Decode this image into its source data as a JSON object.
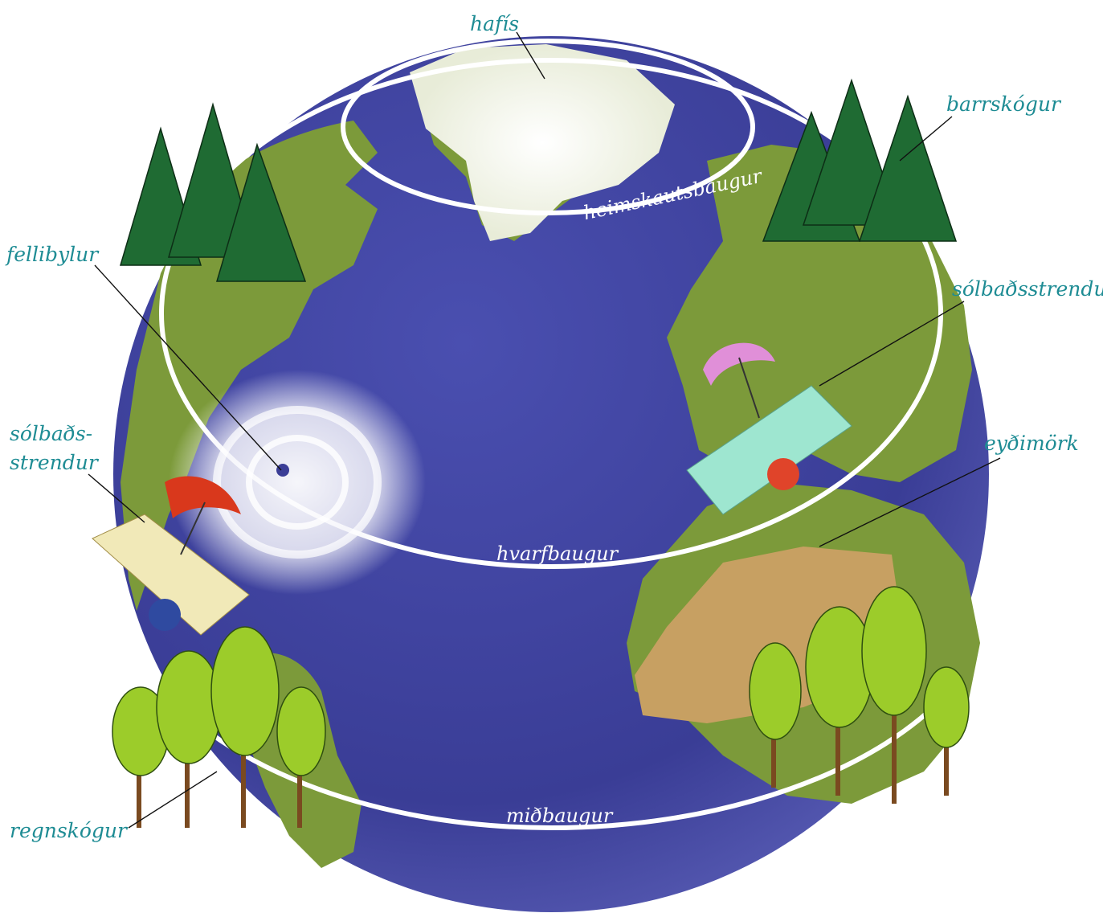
{
  "labels": {
    "sea_ice": "hafís",
    "coniferous_forest": "barrskógur",
    "hurricane": "fellibylur",
    "beaches_east": "sólbaðsstrendur",
    "beaches_west_line1": "sólbaðs-",
    "beaches_west_line2": "strendur",
    "desert": "eyðimörk",
    "rainforest": "regnskógur"
  },
  "circles": {
    "arctic_circle": "heimskautsbaugur",
    "tropic": "hvarfbaugur",
    "equator": "miðbaugur"
  },
  "colors": {
    "label_text": "#1e8c94",
    "ocean": "#3c3f9a",
    "land": "#7c9a3a",
    "ice": "#f2f2ea",
    "conifer": "#1f6b33",
    "broadleaf": "#9ccc2a",
    "desert": "#c7a062"
  }
}
